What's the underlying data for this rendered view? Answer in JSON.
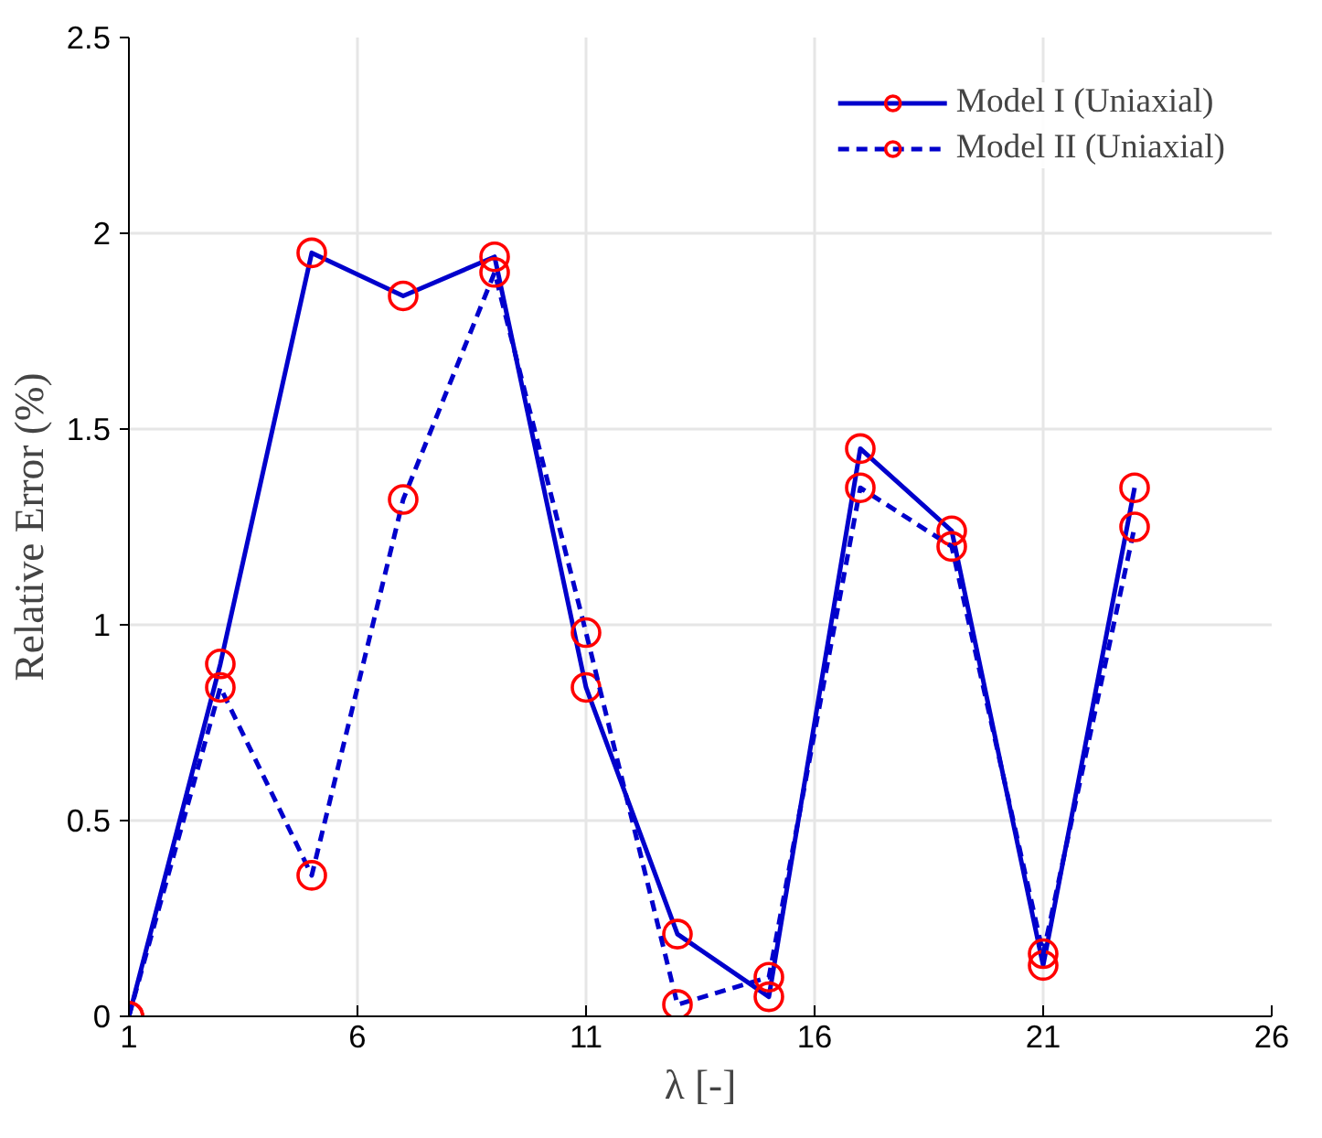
{
  "chart_data": {
    "type": "line",
    "xlabel": "λ [-]",
    "ylabel": "Relative Error (%)",
    "x": [
      1,
      3,
      5,
      7,
      9,
      11,
      13,
      15,
      17,
      19,
      21,
      23
    ],
    "series": [
      {
        "name": "Model I (Uniaxial)",
        "color": "#0000cc",
        "line_style": "solid",
        "colors": [
          "#ff0000",
          "#ff0000",
          "#ff0000",
          "#ff0000",
          "#ff0000",
          "#ff0000",
          "#ff0000",
          "#ff0000",
          "#ff0000",
          "#ff0000",
          "#ff0000",
          "#ff0000"
        ],
        "values": [
          0,
          0.9,
          1.95,
          1.84,
          1.94,
          0.84,
          0.21,
          0.05,
          1.45,
          1.24,
          0.13,
          1.35
        ]
      },
      {
        "name": "Model II (Uniaxial)",
        "color": "#0000cc",
        "line_style": "dashed",
        "colors": [
          "#ff0000",
          "#ff0000",
          "#ff0000",
          "#ff0000",
          "#ff0000",
          "#ff0000",
          "#ff0000",
          "#ff0000",
          "#ff0000",
          "#ff0000",
          "#ff0000",
          "#ff0000"
        ],
        "values": [
          0,
          0.84,
          0.36,
          1.32,
          1.9,
          0.98,
          0.03,
          0.1,
          1.35,
          1.2,
          0.16,
          1.25
        ]
      }
    ],
    "xlim": [
      1,
      26
    ],
    "xticks": [
      1,
      6,
      11,
      16,
      21,
      26
    ],
    "ylim": [
      0,
      2.5
    ],
    "yticks": [
      0,
      {
        "value": 0.5,
        "label": "0.5"
      },
      1,
      {
        "value": 1.5,
        "label": "1.5"
      },
      2,
      {
        "value": 2.5,
        "label": "2.5"
      }
    ],
    "grid": true,
    "legend": "top right",
    "marker": "circle"
  }
}
